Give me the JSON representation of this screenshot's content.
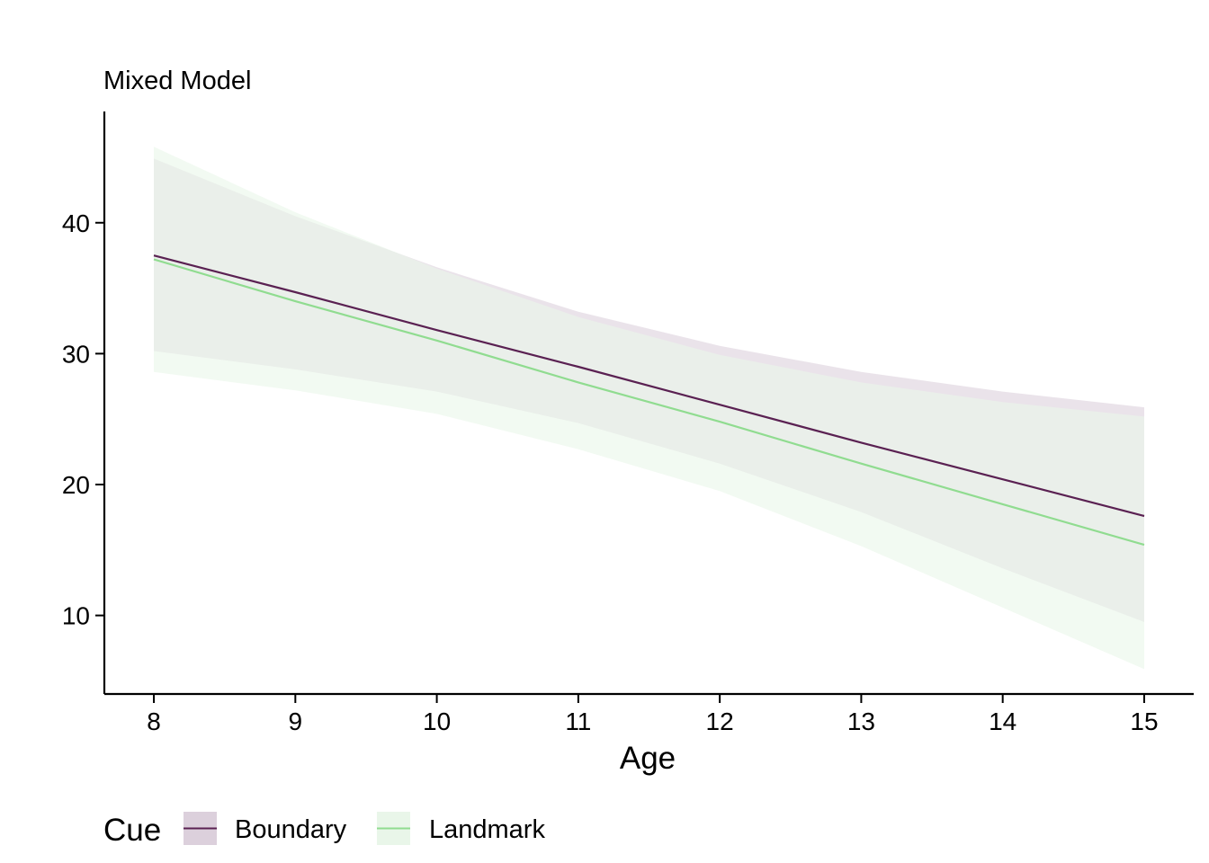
{
  "chart_data": {
    "type": "line",
    "title": "Mixed Model",
    "xlabel": "Age",
    "ylabel": "",
    "xlim": [
      7.65,
      15.35
    ],
    "ylim": [
      4,
      48.5
    ],
    "x_ticks": [
      8,
      9,
      10,
      11,
      12,
      13,
      14,
      15
    ],
    "y_ticks": [
      10,
      20,
      30,
      40
    ],
    "grid": false,
    "legend": {
      "title": "Cue",
      "position": "bottom-left"
    },
    "series": [
      {
        "name": "Boundary",
        "color": "#5a2152",
        "ribbon_color": "#dcd0dc",
        "x": [
          8,
          9,
          10,
          11,
          12,
          13,
          14,
          15
        ],
        "y": [
          37.5,
          34.7,
          31.8,
          29.0,
          26.1,
          23.2,
          20.4,
          17.6
        ],
        "lower": [
          30.2,
          28.8,
          27.1,
          24.7,
          21.6,
          17.9,
          13.6,
          9.5
        ],
        "upper": [
          44.9,
          40.5,
          36.6,
          33.2,
          30.6,
          28.6,
          27.1,
          25.9
        ]
      },
      {
        "name": "Landmark",
        "color": "#90dc90",
        "ribbon_color": "#e9f6e9",
        "x": [
          8,
          9,
          10,
          11,
          12,
          13,
          14,
          15
        ],
        "y": [
          37.2,
          34.0,
          31.0,
          27.8,
          24.8,
          21.6,
          18.5,
          15.4
        ],
        "lower": [
          28.6,
          27.2,
          25.4,
          22.7,
          19.5,
          15.3,
          10.6,
          5.9
        ],
        "upper": [
          45.8,
          40.8,
          36.5,
          32.8,
          29.9,
          27.8,
          26.3,
          25.2
        ]
      }
    ]
  }
}
